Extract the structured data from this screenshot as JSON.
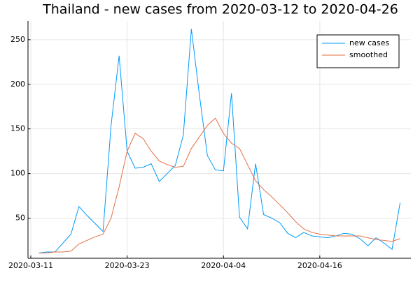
{
  "chart_data": {
    "type": "line",
    "title": "Thailand - new cases from 2020-03-12 to 2020-04-26",
    "x": [
      "2020-03-12",
      "2020-03-13",
      "2020-03-14",
      "2020-03-15",
      "2020-03-16",
      "2020-03-17",
      "2020-03-18",
      "2020-03-19",
      "2020-03-20",
      "2020-03-21",
      "2020-03-22",
      "2020-03-23",
      "2020-03-24",
      "2020-03-25",
      "2020-03-26",
      "2020-03-27",
      "2020-03-28",
      "2020-03-29",
      "2020-03-30",
      "2020-03-31",
      "2020-04-01",
      "2020-04-02",
      "2020-04-03",
      "2020-04-04",
      "2020-04-05",
      "2020-04-06",
      "2020-04-07",
      "2020-04-08",
      "2020-04-09",
      "2020-04-10",
      "2020-04-11",
      "2020-04-12",
      "2020-04-13",
      "2020-04-14",
      "2020-04-15",
      "2020-04-16",
      "2020-04-17",
      "2020-04-18",
      "2020-04-19",
      "2020-04-20",
      "2020-04-21",
      "2020-04-22",
      "2020-04-23",
      "2020-04-24",
      "2020-04-25",
      "2020-04-26"
    ],
    "series": [
      {
        "name": "new cases",
        "color": "#009afa",
        "values": [
          11,
          12,
          12,
          22,
          32,
          63,
          53,
          44,
          35,
          154,
          232,
          125,
          106,
          107,
          111,
          91,
          100,
          109,
          143,
          262,
          188,
          120,
          104,
          103,
          190,
          51,
          38,
          111,
          54,
          50,
          45,
          33,
          28,
          34,
          30,
          29,
          28,
          30,
          33,
          32,
          27,
          19,
          28,
          22,
          15,
          67
        ]
      },
      {
        "name": "smoothed",
        "color": "#e26f46",
        "values": [
          11,
          11,
          12,
          12,
          13,
          21,
          25,
          29,
          32,
          50,
          85,
          125,
          145,
          139,
          125,
          114,
          110,
          107,
          108,
          128,
          141,
          154,
          162,
          145,
          134,
          128,
          110,
          92,
          82,
          74,
          65,
          56,
          46,
          38,
          34,
          32,
          31,
          30,
          30,
          30,
          30,
          28,
          26,
          25,
          24,
          27
        ]
      }
    ],
    "xlim": [
      "2020-03-11",
      "2020-04-27"
    ],
    "xticks": [
      "2020-03-11",
      "2020-03-23",
      "2020-04-04",
      "2020-04-16"
    ],
    "ylim": [
      5,
      271
    ],
    "yticks": [
      50,
      100,
      150,
      200,
      250
    ],
    "grid": true,
    "legend": "top-right"
  }
}
